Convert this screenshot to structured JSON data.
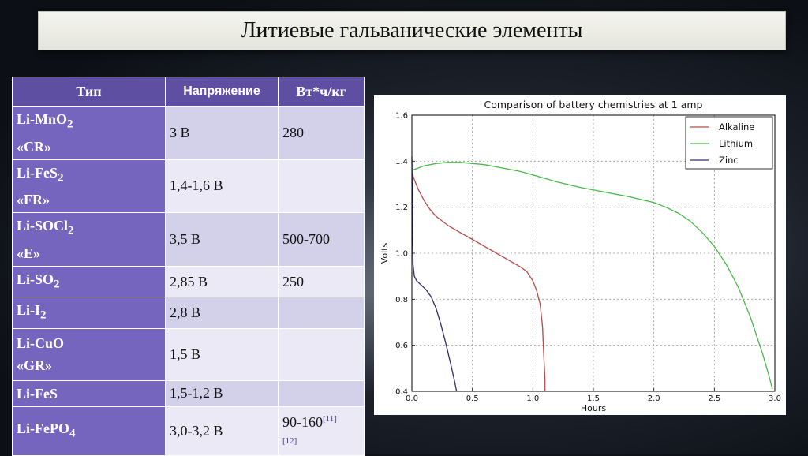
{
  "slide": {
    "title": "Литиевые гальванические элементы"
  },
  "table": {
    "headers": [
      "Тип",
      "Напряжение",
      "Вт*ч/кг"
    ],
    "rows": [
      {
        "type_main": "Li-MnO",
        "type_sub": "2",
        "type_tail": "",
        "alias": "«CR»",
        "voltage": "3 В",
        "energy": "280"
      },
      {
        "type_main": "Li-FeS",
        "type_sub": "2",
        "type_tail": "",
        "alias": "«FR»",
        "voltage": "1,4-1,6 В",
        "energy": ""
      },
      {
        "type_main": "Li-SOCl",
        "type_sub": "2",
        "type_tail": "",
        "alias": "«E»",
        "voltage": "3,5 В",
        "energy": "500-700"
      },
      {
        "type_main": "Li-SO",
        "type_sub": "2",
        "type_tail": "",
        "alias": "",
        "voltage": "2,85 В",
        "energy": "250"
      },
      {
        "type_main": "Li-I",
        "type_sub": "2",
        "type_tail": "",
        "alias": "",
        "voltage": "2,8 В",
        "energy": ""
      },
      {
        "type_main": "Li-CuO",
        "type_sub": "",
        "type_tail": "",
        "alias": "«GR»",
        "voltage": "1,5 В",
        "energy": ""
      },
      {
        "type_main": "Li-FeS",
        "type_sub": "",
        "type_tail": "",
        "alias": "",
        "voltage": "1,5-1,2 В",
        "energy": ""
      },
      {
        "type_main": "Li-FePO",
        "type_sub": "4",
        "type_tail": "",
        "alias": "",
        "voltage": "3,0-3,2 В",
        "energy": "90-160",
        "ref1": "[11]",
        "ref2": "[12]"
      }
    ]
  },
  "chart_data": {
    "type": "line",
    "title": "Comparison of battery chemistries at 1 amp",
    "xlabel": "Hours",
    "ylabel": "Volts",
    "xlim": [
      0.0,
      3.0
    ],
    "ylim": [
      0.4,
      1.6
    ],
    "xticks": [
      "0.0",
      "0.5",
      "1.0",
      "1.5",
      "2.0",
      "2.5",
      "3.0"
    ],
    "yticks": [
      "0.4",
      "0.6",
      "0.8",
      "1.0",
      "1.2",
      "1.4",
      "1.6"
    ],
    "grid": true,
    "legend_position": "top-right",
    "series": [
      {
        "name": "Alkaline",
        "color": "#b54a4a",
        "x": [
          0.0,
          0.02,
          0.05,
          0.1,
          0.15,
          0.2,
          0.3,
          0.4,
          0.5,
          0.6,
          0.7,
          0.8,
          0.9,
          0.95,
          1.0,
          1.03,
          1.06,
          1.08,
          1.09,
          1.1,
          1.1
        ],
        "y": [
          1.35,
          1.32,
          1.28,
          1.23,
          1.19,
          1.16,
          1.12,
          1.09,
          1.06,
          1.03,
          1.0,
          0.97,
          0.94,
          0.92,
          0.88,
          0.84,
          0.78,
          0.68,
          0.56,
          0.45,
          0.4
        ]
      },
      {
        "name": "Lithium",
        "color": "#4ab84a",
        "x": [
          0.0,
          0.05,
          0.1,
          0.2,
          0.3,
          0.4,
          0.5,
          0.6,
          0.7,
          0.8,
          0.9,
          1.0,
          1.2,
          1.4,
          1.6,
          1.8,
          2.0,
          2.1,
          2.2,
          2.3,
          2.4,
          2.5,
          2.6,
          2.7,
          2.8,
          2.85,
          2.9,
          2.95,
          2.98
        ],
        "y": [
          1.36,
          1.37,
          1.38,
          1.39,
          1.395,
          1.395,
          1.39,
          1.385,
          1.375,
          1.365,
          1.355,
          1.34,
          1.31,
          1.285,
          1.265,
          1.245,
          1.22,
          1.2,
          1.175,
          1.14,
          1.09,
          1.03,
          0.95,
          0.85,
          0.72,
          0.64,
          0.56,
          0.47,
          0.41
        ]
      },
      {
        "name": "Zinc",
        "color": "#2e2e6e",
        "x": [
          0.0,
          0.005,
          0.01,
          0.02,
          0.04,
          0.08,
          0.12,
          0.16,
          0.2,
          0.24,
          0.28,
          0.32,
          0.35,
          0.37
        ],
        "y": [
          1.42,
          1.15,
          0.95,
          0.9,
          0.88,
          0.86,
          0.84,
          0.81,
          0.76,
          0.69,
          0.61,
          0.52,
          0.45,
          0.4
        ]
      }
    ]
  }
}
